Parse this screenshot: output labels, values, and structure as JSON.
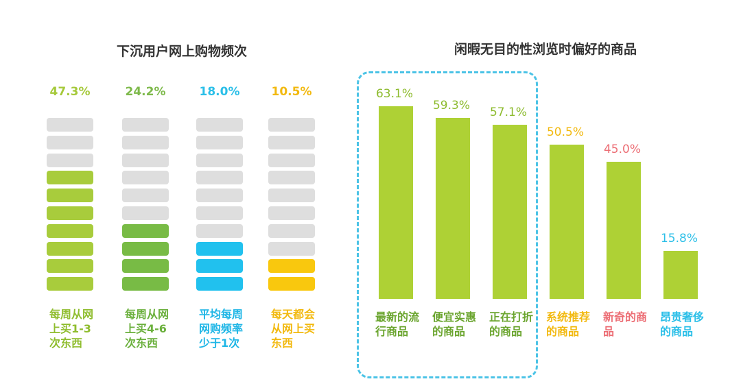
{
  "left_chart": {
    "title": "下沉用户网上购物频次",
    "colors": {
      "inactive": "#dedede"
    },
    "columns": [
      {
        "pct": "47.3%",
        "value": 47.3,
        "filled": 7,
        "label": "每周从网上买1-3次东西",
        "pct_color": "#a5c93a",
        "fill_color": "#a8cc3c",
        "label_color": "#8fbd2e"
      },
      {
        "pct": "24.2%",
        "value": 24.2,
        "filled": 4,
        "label": "每周从网上买4-6次东西",
        "pct_color": "#7db94a",
        "fill_color": "#78bb45",
        "label_color": "#6bb03d"
      },
      {
        "pct": "18.0%",
        "value": 18.0,
        "filled": 3,
        "label": "平均每周网购频率少于1次",
        "pct_color": "#2bbfe8",
        "fill_color": "#21c1ee",
        "label_color": "#1fb6e6"
      },
      {
        "pct": "10.5%",
        "value": 10.5,
        "filled": 2,
        "label": "每天都会从网上买东西",
        "pct_color": "#f2b90f",
        "fill_color": "#f9c80e",
        "label_color": "#f2b90f"
      }
    ]
  },
  "chart_data": {
    "type": "bar",
    "title": "闲暇无目的性浏览时偏好的商品",
    "categories": [
      "最新的流行商品",
      "便宜实惠的商品",
      "正在打折的商品",
      "系统推荐的商品",
      "新奇的商品",
      "昂贵奢侈的商品"
    ],
    "values": [
      63.1,
      59.3,
      57.1,
      50.5,
      45.0,
      15.8
    ],
    "value_labels": [
      "63.1%",
      "59.3%",
      "57.1%",
      "50.5%",
      "45.0%",
      "15.8%"
    ],
    "ylim": [
      0,
      70
    ],
    "grid": false,
    "bar_color": "#aed135",
    "value_colors": [
      "#8dbb2e",
      "#8dbb2e",
      "#8dbb2e",
      "#f2b90f",
      "#ec6d74",
      "#2bbfe8"
    ],
    "label_colors": [
      "#6ba52f",
      "#6ba52f",
      "#6ba52f",
      "#f2b90f",
      "#ec6d74",
      "#2bbfe8"
    ],
    "highlight_box_color": "#4bc3e6"
  }
}
